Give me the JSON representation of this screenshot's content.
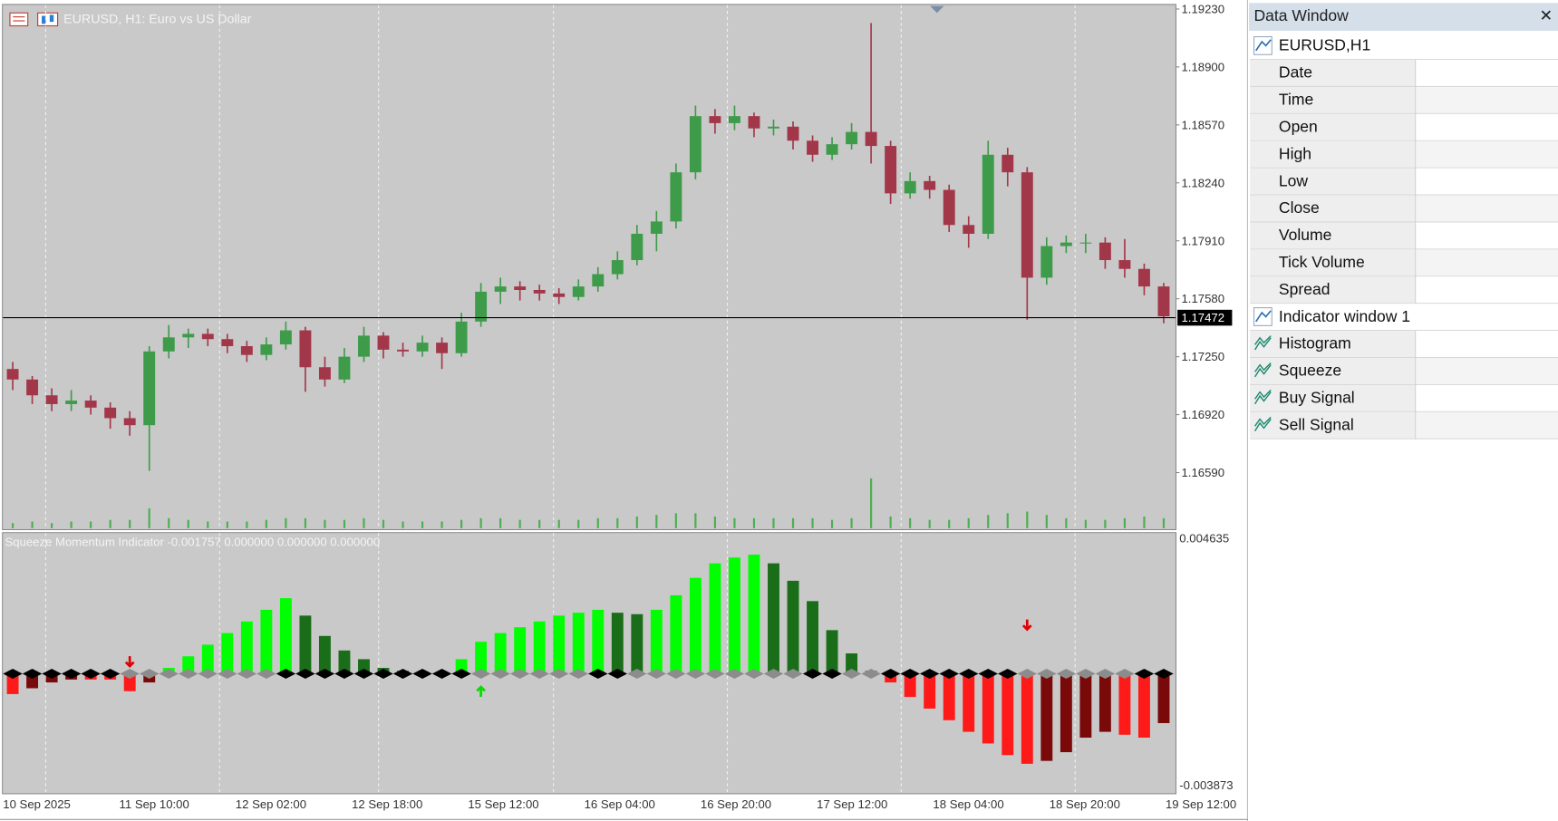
{
  "chart": {
    "title": "EURUSD, H1:  Euro vs US Dollar",
    "price_ylim": [
      1.16268,
      1.19253
    ],
    "price_ticks": [
      {
        "value": 1.1923,
        "label": "1.19230"
      },
      {
        "value": 1.189,
        "label": "1.18900"
      },
      {
        "value": 1.1857,
        "label": "1.18570"
      },
      {
        "value": 1.1824,
        "label": "1.18240"
      },
      {
        "value": 1.1791,
        "label": "1.17910"
      },
      {
        "value": 1.1758,
        "label": "1.17580"
      },
      {
        "value": 1.1725,
        "label": "1.17250"
      },
      {
        "value": 1.1692,
        "label": "1.16920"
      },
      {
        "value": 1.1659,
        "label": "1.16590"
      }
    ],
    "current_price": {
      "value": 1.17472,
      "label": "1.17472"
    },
    "bull_color": "#3e9b4a",
    "bear_color": "#a3374a",
    "volume_color": "#4caf50",
    "candles": [
      [
        1.1718,
        1.1722,
        1.1706,
        1.1712
      ],
      [
        1.1712,
        1.1714,
        1.1698,
        1.1703
      ],
      [
        1.1703,
        1.1707,
        1.1694,
        1.1698
      ],
      [
        1.1698,
        1.1706,
        1.1694,
        1.17
      ],
      [
        1.17,
        1.1703,
        1.1692,
        1.1696
      ],
      [
        1.1696,
        1.1699,
        1.1684,
        1.169
      ],
      [
        1.169,
        1.1694,
        1.168,
        1.1686
      ],
      [
        1.1686,
        1.1731,
        1.166,
        1.1728
      ],
      [
        1.1728,
        1.1743,
        1.1724,
        1.1736
      ],
      [
        1.1736,
        1.1741,
        1.173,
        1.1738
      ],
      [
        1.1738,
        1.1741,
        1.1731,
        1.1735
      ],
      [
        1.1735,
        1.1738,
        1.1727,
        1.1731
      ],
      [
        1.1731,
        1.1734,
        1.1722,
        1.1726
      ],
      [
        1.1726,
        1.1736,
        1.1723,
        1.1732
      ],
      [
        1.1732,
        1.1745,
        1.1729,
        1.174
      ],
      [
        1.174,
        1.1742,
        1.1705,
        1.1719
      ],
      [
        1.1719,
        1.1725,
        1.1708,
        1.1712
      ],
      [
        1.1712,
        1.173,
        1.171,
        1.1725
      ],
      [
        1.1725,
        1.1742,
        1.1722,
        1.1737
      ],
      [
        1.1737,
        1.1739,
        1.1724,
        1.1729
      ],
      [
        1.1729,
        1.1733,
        1.1725,
        1.1728
      ],
      [
        1.1728,
        1.1737,
        1.1725,
        1.1733
      ],
      [
        1.1733,
        1.1736,
        1.1718,
        1.1727
      ],
      [
        1.1727,
        1.175,
        1.1725,
        1.1745
      ],
      [
        1.1745,
        1.1767,
        1.1742,
        1.1762
      ],
      [
        1.1762,
        1.177,
        1.1755,
        1.1765
      ],
      [
        1.1765,
        1.1768,
        1.1757,
        1.1763
      ],
      [
        1.1763,
        1.1766,
        1.1757,
        1.1761
      ],
      [
        1.1761,
        1.1764,
        1.1755,
        1.1759
      ],
      [
        1.1759,
        1.1769,
        1.1757,
        1.1765
      ],
      [
        1.1765,
        1.1776,
        1.1762,
        1.1772
      ],
      [
        1.1772,
        1.1785,
        1.1769,
        1.178
      ],
      [
        1.178,
        1.18,
        1.1777,
        1.1795
      ],
      [
        1.1795,
        1.1808,
        1.1785,
        1.1802
      ],
      [
        1.1802,
        1.1835,
        1.1798,
        1.183
      ],
      [
        1.183,
        1.1868,
        1.1826,
        1.1862
      ],
      [
        1.1862,
        1.1866,
        1.1852,
        1.1858
      ],
      [
        1.1858,
        1.1868,
        1.1854,
        1.1862
      ],
      [
        1.1862,
        1.1864,
        1.185,
        1.1855
      ],
      [
        1.1855,
        1.186,
        1.1851,
        1.1856
      ],
      [
        1.1856,
        1.1859,
        1.1843,
        1.1848
      ],
      [
        1.1848,
        1.1851,
        1.1836,
        1.184
      ],
      [
        1.184,
        1.185,
        1.1837,
        1.1846
      ],
      [
        1.1846,
        1.1858,
        1.1843,
        1.1853
      ],
      [
        1.1853,
        1.1915,
        1.1835,
        1.1845
      ],
      [
        1.1845,
        1.1848,
        1.1812,
        1.1818
      ],
      [
        1.1818,
        1.183,
        1.1815,
        1.1825
      ],
      [
        1.1825,
        1.1828,
        1.1815,
        1.182
      ],
      [
        1.182,
        1.1823,
        1.1796,
        1.18
      ],
      [
        1.18,
        1.1805,
        1.1787,
        1.1795
      ],
      [
        1.1795,
        1.1848,
        1.1792,
        1.184
      ],
      [
        1.184,
        1.1844,
        1.1822,
        1.183
      ],
      [
        1.183,
        1.1833,
        1.1746,
        1.177
      ],
      [
        1.177,
        1.1793,
        1.1766,
        1.1788
      ],
      [
        1.1788,
        1.1794,
        1.1784,
        1.179
      ],
      [
        1.179,
        1.1795,
        1.1784,
        1.179
      ],
      [
        1.179,
        1.1793,
        1.1775,
        1.178
      ],
      [
        1.178,
        1.1792,
        1.177,
        1.1775
      ],
      [
        1.1775,
        1.1778,
        1.176,
        1.1765
      ],
      [
        1.1765,
        1.1767,
        1.1744,
        1.1748
      ]
    ],
    "volumes": [
      3,
      4,
      3,
      4,
      4,
      5,
      5,
      12,
      6,
      5,
      4,
      4,
      4,
      5,
      6,
      6,
      5,
      5,
      6,
      5,
      4,
      4,
      4,
      5,
      6,
      6,
      5,
      5,
      5,
      5,
      6,
      6,
      7,
      8,
      9,
      9,
      7,
      6,
      6,
      6,
      6,
      6,
      5,
      6,
      30,
      7,
      6,
      5,
      5,
      6,
      8,
      9,
      10,
      8,
      6,
      5,
      5,
      6,
      7,
      6
    ],
    "time_labels": [
      "10 Sep 2025",
      "11 Sep 10:00",
      "12 Sep 02:00",
      "12 Sep 18:00",
      "15 Sep 12:00",
      "16 Sep 04:00",
      "16 Sep 20:00",
      "17 Sep 12:00",
      "18 Sep 04:00",
      "18 Sep 20:00",
      "19 Sep 12:00"
    ],
    "indicator": {
      "label": "Squeeze Momentum Indicator -0.001757 0.000000 0.000000 0.000000",
      "ylim": [
        {
          "value": -0.003873,
          "label": "-0.003873"
        },
        {
          "value": 0.004635,
          "label": "0.004635"
        }
      ],
      "colors": {
        "pos_rising": "#00ff00",
        "pos_falling": "#1a6e1a",
        "neg_falling": "#ff1a1a",
        "neg_rising": "#7a0a0a",
        "squeeze_on": "#000000",
        "squeeze_off": "#8c8c8c",
        "buy": "#00e000",
        "sell": "#e00000"
      },
      "histogram": [
        -0.0007,
        -0.0005,
        -0.0003,
        -0.0002,
        -0.0002,
        -0.0002,
        -0.0006,
        -0.0003,
        0.0002,
        0.0006,
        0.001,
        0.0014,
        0.0018,
        0.0022,
        0.0026,
        0.002,
        0.0013,
        0.0008,
        0.0005,
        0.0002,
        0.0001,
        5e-05,
        3e-05,
        0.0005,
        0.0011,
        0.0014,
        0.0016,
        0.0018,
        0.002,
        0.0021,
        0.0022,
        0.0021,
        0.00205,
        0.0022,
        0.0027,
        0.0033,
        0.0038,
        0.004,
        0.0041,
        0.0038,
        0.0032,
        0.0025,
        0.0015,
        0.0007,
        0.0001,
        -0.0003,
        -0.0008,
        -0.0012,
        -0.0016,
        -0.002,
        -0.0024,
        -0.0028,
        -0.0031,
        -0.003,
        -0.0027,
        -0.0022,
        -0.002,
        -0.0021,
        -0.0022,
        -0.0017
      ],
      "squeeze": [
        "on",
        "on",
        "on",
        "on",
        "on",
        "on",
        "off",
        "off",
        "off",
        "off",
        "off",
        "off",
        "off",
        "off",
        "on",
        "on",
        "on",
        "on",
        "on",
        "on",
        "on",
        "on",
        "on",
        "on",
        "off",
        "off",
        "off",
        "off",
        "off",
        "off",
        "on",
        "on",
        "off",
        "off",
        "off",
        "off",
        "off",
        "off",
        "off",
        "off",
        "off",
        "on",
        "on",
        "off",
        "off",
        "on",
        "on",
        "on",
        "on",
        "on",
        "on",
        "on",
        "off",
        "off",
        "off",
        "off",
        "off",
        "off",
        "on",
        "on"
      ],
      "signals": [
        null,
        null,
        null,
        null,
        null,
        null,
        "sell",
        null,
        null,
        null,
        null,
        null,
        null,
        null,
        null,
        null,
        null,
        null,
        null,
        null,
        null,
        null,
        null,
        null,
        "buy",
        null,
        null,
        null,
        null,
        null,
        null,
        null,
        null,
        null,
        null,
        null,
        null,
        null,
        null,
        null,
        null,
        null,
        null,
        null,
        null,
        null,
        null,
        null,
        null,
        null,
        null,
        null,
        "sell",
        null,
        null,
        null,
        null,
        null,
        null,
        null
      ]
    }
  },
  "data_window": {
    "title": "Data Window",
    "close": "✕",
    "rows": [
      {
        "label": "EURUSD,H1",
        "icon": "line"
      },
      {
        "label": "Date"
      },
      {
        "label": "Time"
      },
      {
        "label": "Open"
      },
      {
        "label": "High"
      },
      {
        "label": "Low"
      },
      {
        "label": "Close"
      },
      {
        "label": "Volume"
      },
      {
        "label": "Tick Volume"
      },
      {
        "label": "Spread"
      },
      {
        "label": "Indicator window 1",
        "icon": "line"
      },
      {
        "label": "Histogram",
        "icon": "ind"
      },
      {
        "label": "Squeeze",
        "icon": "ind"
      },
      {
        "label": "Buy Signal",
        "icon": "ind"
      },
      {
        "label": "Sell Signal",
        "icon": "ind"
      }
    ]
  }
}
